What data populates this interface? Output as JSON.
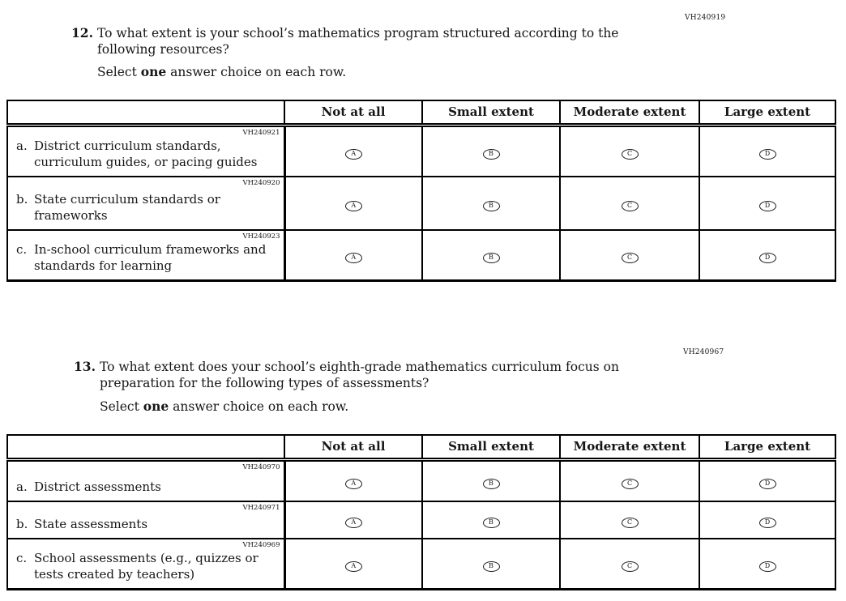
{
  "questions": [
    {
      "number": "12.",
      "code": "VH240919",
      "text": "To what extent is your school’s mathematics program structured according to the following resources?",
      "instruction": {
        "pre": "Select ",
        "bold": "one",
        "post": " answer choice on each row."
      },
      "columns": [
        "Not at all",
        "Small extent",
        "Moderate extent",
        "Large extent"
      ],
      "option_letters": [
        "A",
        "B",
        "C",
        "D"
      ],
      "rows": [
        {
          "code": "VH240921",
          "letter": "a.",
          "text": "District curriculum standards, curriculum guides, or pacing guides"
        },
        {
          "code": "VH240920",
          "letter": "b.",
          "text": "State curriculum standards or frameworks"
        },
        {
          "code": "VH240923",
          "letter": "c.",
          "text": "In-school curriculum frameworks and standards for learning"
        }
      ]
    },
    {
      "number": "13.",
      "code": "VH240967",
      "text": "To what extent does your school’s eighth-grade mathematics curriculum focus on preparation for the following types of assessments?",
      "instruction": {
        "pre": "Select ",
        "bold": "one",
        "post": " answer choice on each row."
      },
      "columns": [
        "Not at all",
        "Small extent",
        "Moderate extent",
        "Large extent"
      ],
      "option_letters": [
        "A",
        "B",
        "C",
        "D"
      ],
      "rows": [
        {
          "code": "VH240970",
          "letter": "a.",
          "text": "District assessments"
        },
        {
          "code": "VH240971",
          "letter": "b.",
          "text": "State assessments"
        },
        {
          "code": "VH240969",
          "letter": "c.",
          "text": "School assessments (e.g., quizzes or tests created by teachers)"
        }
      ]
    }
  ]
}
